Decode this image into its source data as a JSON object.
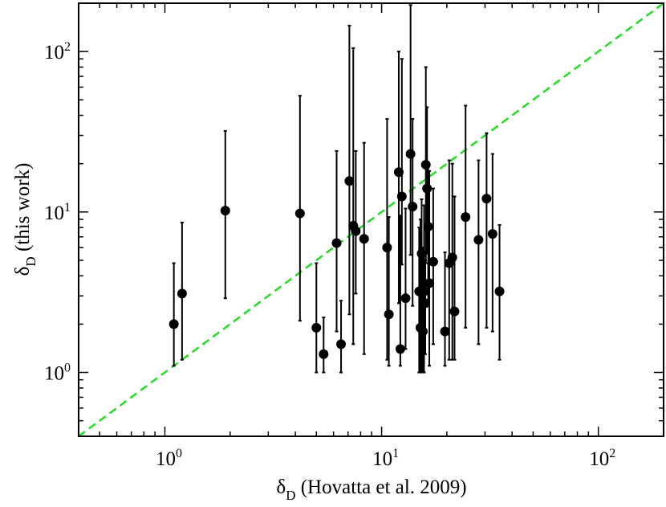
{
  "chart_data": {
    "type": "scatter",
    "title": "",
    "xlabel": {
      "main": "δ",
      "sub": "D",
      "rest": " (Hovatta et al. 2009)"
    },
    "ylabel": {
      "main": "δ",
      "sub": "D",
      "rest": " (this work)"
    },
    "x_scale": "log",
    "y_scale": "log",
    "xlim": [
      0.4,
      200
    ],
    "ylim": [
      0.4,
      200
    ],
    "x_ticks": [
      {
        "value": 1,
        "base": "10",
        "exp": "0"
      },
      {
        "value": 10,
        "base": "10",
        "exp": "1"
      },
      {
        "value": 100,
        "base": "10",
        "exp": "2"
      }
    ],
    "y_ticks": [
      {
        "value": 1,
        "base": "10",
        "exp": "0"
      },
      {
        "value": 10,
        "base": "10",
        "exp": "1"
      },
      {
        "value": 100,
        "base": "10",
        "exp": "2"
      }
    ],
    "grid": false,
    "legend": null,
    "reference_line": {
      "type": "y=x",
      "color": "#22dd22",
      "style": "dashed"
    },
    "marker_color": "#000000",
    "points": [
      {
        "x": 1.1,
        "y": 2.0,
        "ylo": 1.1,
        "yhi": 4.8
      },
      {
        "x": 1.2,
        "y": 3.1,
        "ylo": 1.2,
        "yhi": 8.6
      },
      {
        "x": 1.9,
        "y": 10.2,
        "ylo": 2.9,
        "yhi": 32.0
      },
      {
        "x": 4.2,
        "y": 9.8,
        "ylo": 2.1,
        "yhi": 53.0
      },
      {
        "x": 5.0,
        "y": 1.9,
        "ylo": 1.0,
        "yhi": 4.8
      },
      {
        "x": 5.4,
        "y": 1.3,
        "ylo": 1.0,
        "yhi": 2.2
      },
      {
        "x": 6.2,
        "y": 6.4,
        "ylo": 1.8,
        "yhi": 24.0
      },
      {
        "x": 6.5,
        "y": 1.5,
        "ylo": 1.0,
        "yhi": 2.8
      },
      {
        "x": 7.1,
        "y": 15.6,
        "ylo": 2.3,
        "yhi": 145.0
      },
      {
        "x": 7.4,
        "y": 8.2,
        "ylo": 1.5,
        "yhi": 105.0
      },
      {
        "x": 7.6,
        "y": 7.6,
        "ylo": 3.1,
        "yhi": 24.0
      },
      {
        "x": 8.3,
        "y": 6.8,
        "ylo": 1.3,
        "yhi": 27.0
      },
      {
        "x": 10.6,
        "y": 6.0,
        "ylo": 1.2,
        "yhi": 38.0
      },
      {
        "x": 10.8,
        "y": 2.3,
        "ylo": 1.1,
        "yhi": 9.3
      },
      {
        "x": 12.0,
        "y": 17.7,
        "ylo": 2.7,
        "yhi": 100.0
      },
      {
        "x": 12.2,
        "y": 1.4,
        "ylo": 1.1,
        "yhi": 9.5
      },
      {
        "x": 12.4,
        "y": 12.5,
        "ylo": 4.7,
        "yhi": 90.0
      },
      {
        "x": 12.9,
        "y": 2.9,
        "ylo": 1.4,
        "yhi": 10.5
      },
      {
        "x": 13.6,
        "y": 23.0,
        "ylo": 5.4,
        "yhi": 195.0
      },
      {
        "x": 13.9,
        "y": 10.8,
        "ylo": 2.6,
        "yhi": 38.0
      },
      {
        "x": 14.9,
        "y": 3.2,
        "ylo": 1.0,
        "yhi": 8.0
      },
      {
        "x": 15.1,
        "y": 1.9,
        "ylo": 1.0,
        "yhi": 9.0
      },
      {
        "x": 15.3,
        "y": 5.5,
        "ylo": 1.0,
        "yhi": 12.0
      },
      {
        "x": 15.5,
        "y": 1.8,
        "ylo": 1.0,
        "yhi": 6.0
      },
      {
        "x": 15.7,
        "y": 3.2,
        "ylo": 1.0,
        "yhi": 11.0
      },
      {
        "x": 15.9,
        "y": 2.7,
        "ylo": 1.3,
        "yhi": 5.0
      },
      {
        "x": 16.0,
        "y": 19.7,
        "ylo": 4.8,
        "yhi": 80.0
      },
      {
        "x": 16.2,
        "y": 14.0,
        "ylo": 5.5,
        "yhi": 45.0
      },
      {
        "x": 16.4,
        "y": 8.1,
        "ylo": 2.6,
        "yhi": 20.0
      },
      {
        "x": 16.6,
        "y": 3.6,
        "ylo": 1.1,
        "yhi": 18.0
      },
      {
        "x": 17.3,
        "y": 4.9,
        "ylo": 1.5,
        "yhi": 14.0
      },
      {
        "x": 19.6,
        "y": 1.8,
        "ylo": 1.1,
        "yhi": 5.6
      },
      {
        "x": 20.5,
        "y": 4.8,
        "ylo": 1.2,
        "yhi": 21.0
      },
      {
        "x": 21.2,
        "y": 5.2,
        "ylo": 1.2,
        "yhi": 20.0
      },
      {
        "x": 21.7,
        "y": 2.4,
        "ylo": 1.2,
        "yhi": 12.5
      },
      {
        "x": 24.4,
        "y": 9.3,
        "ylo": 1.9,
        "yhi": 46.0
      },
      {
        "x": 28.0,
        "y": 6.7,
        "ylo": 1.5,
        "yhi": 21.0
      },
      {
        "x": 30.5,
        "y": 12.1,
        "ylo": 1.9,
        "yhi": 31.0
      },
      {
        "x": 32.5,
        "y": 7.3,
        "ylo": 1.8,
        "yhi": 23.0
      },
      {
        "x": 35.0,
        "y": 3.2,
        "ylo": 1.2,
        "yhi": 8.3
      }
    ]
  }
}
